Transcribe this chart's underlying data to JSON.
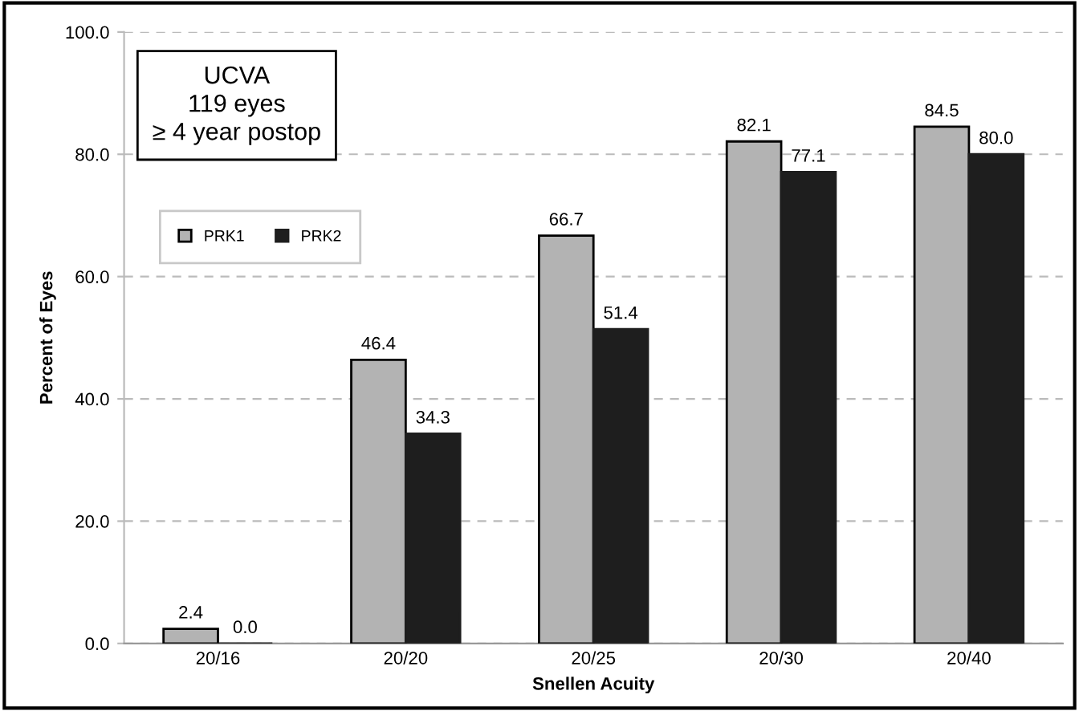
{
  "chart_data": {
    "type": "bar",
    "xlabel": "Snellen Acuity",
    "ylabel": "Percent of Eyes",
    "annotations": [
      "UCVA\n119 eyes\n≥ 4 year postop"
    ],
    "categories": [
      "20/16",
      "20/20",
      "20/25",
      "20/30",
      "20/40"
    ],
    "series": [
      {
        "name": "PRK1",
        "color": "#b3b3b3",
        "values": [
          2.4,
          46.4,
          66.7,
          82.1,
          84.5
        ],
        "value_labels": [
          "2.4",
          "46.4",
          "66.7",
          "82.1",
          "84.5"
        ]
      },
      {
        "name": "PRK2",
        "color": "#1e1e1e",
        "values": [
          0.0,
          34.3,
          51.4,
          77.1,
          80.0
        ],
        "value_labels": [
          "0.0",
          "34.3",
          "51.4",
          "77.1",
          "80.0"
        ]
      }
    ],
    "ylim": [
      0,
      100
    ],
    "yticks": [
      {
        "value": 0,
        "label": "0.0"
      },
      {
        "value": 20,
        "label": "20.0"
      },
      {
        "value": 40,
        "label": "40.0"
      },
      {
        "value": 60,
        "label": "60.0"
      },
      {
        "value": 80,
        "label": "80.0"
      },
      {
        "value": 100,
        "label": "100.0"
      }
    ],
    "grid": "y",
    "legend": "top left"
  }
}
